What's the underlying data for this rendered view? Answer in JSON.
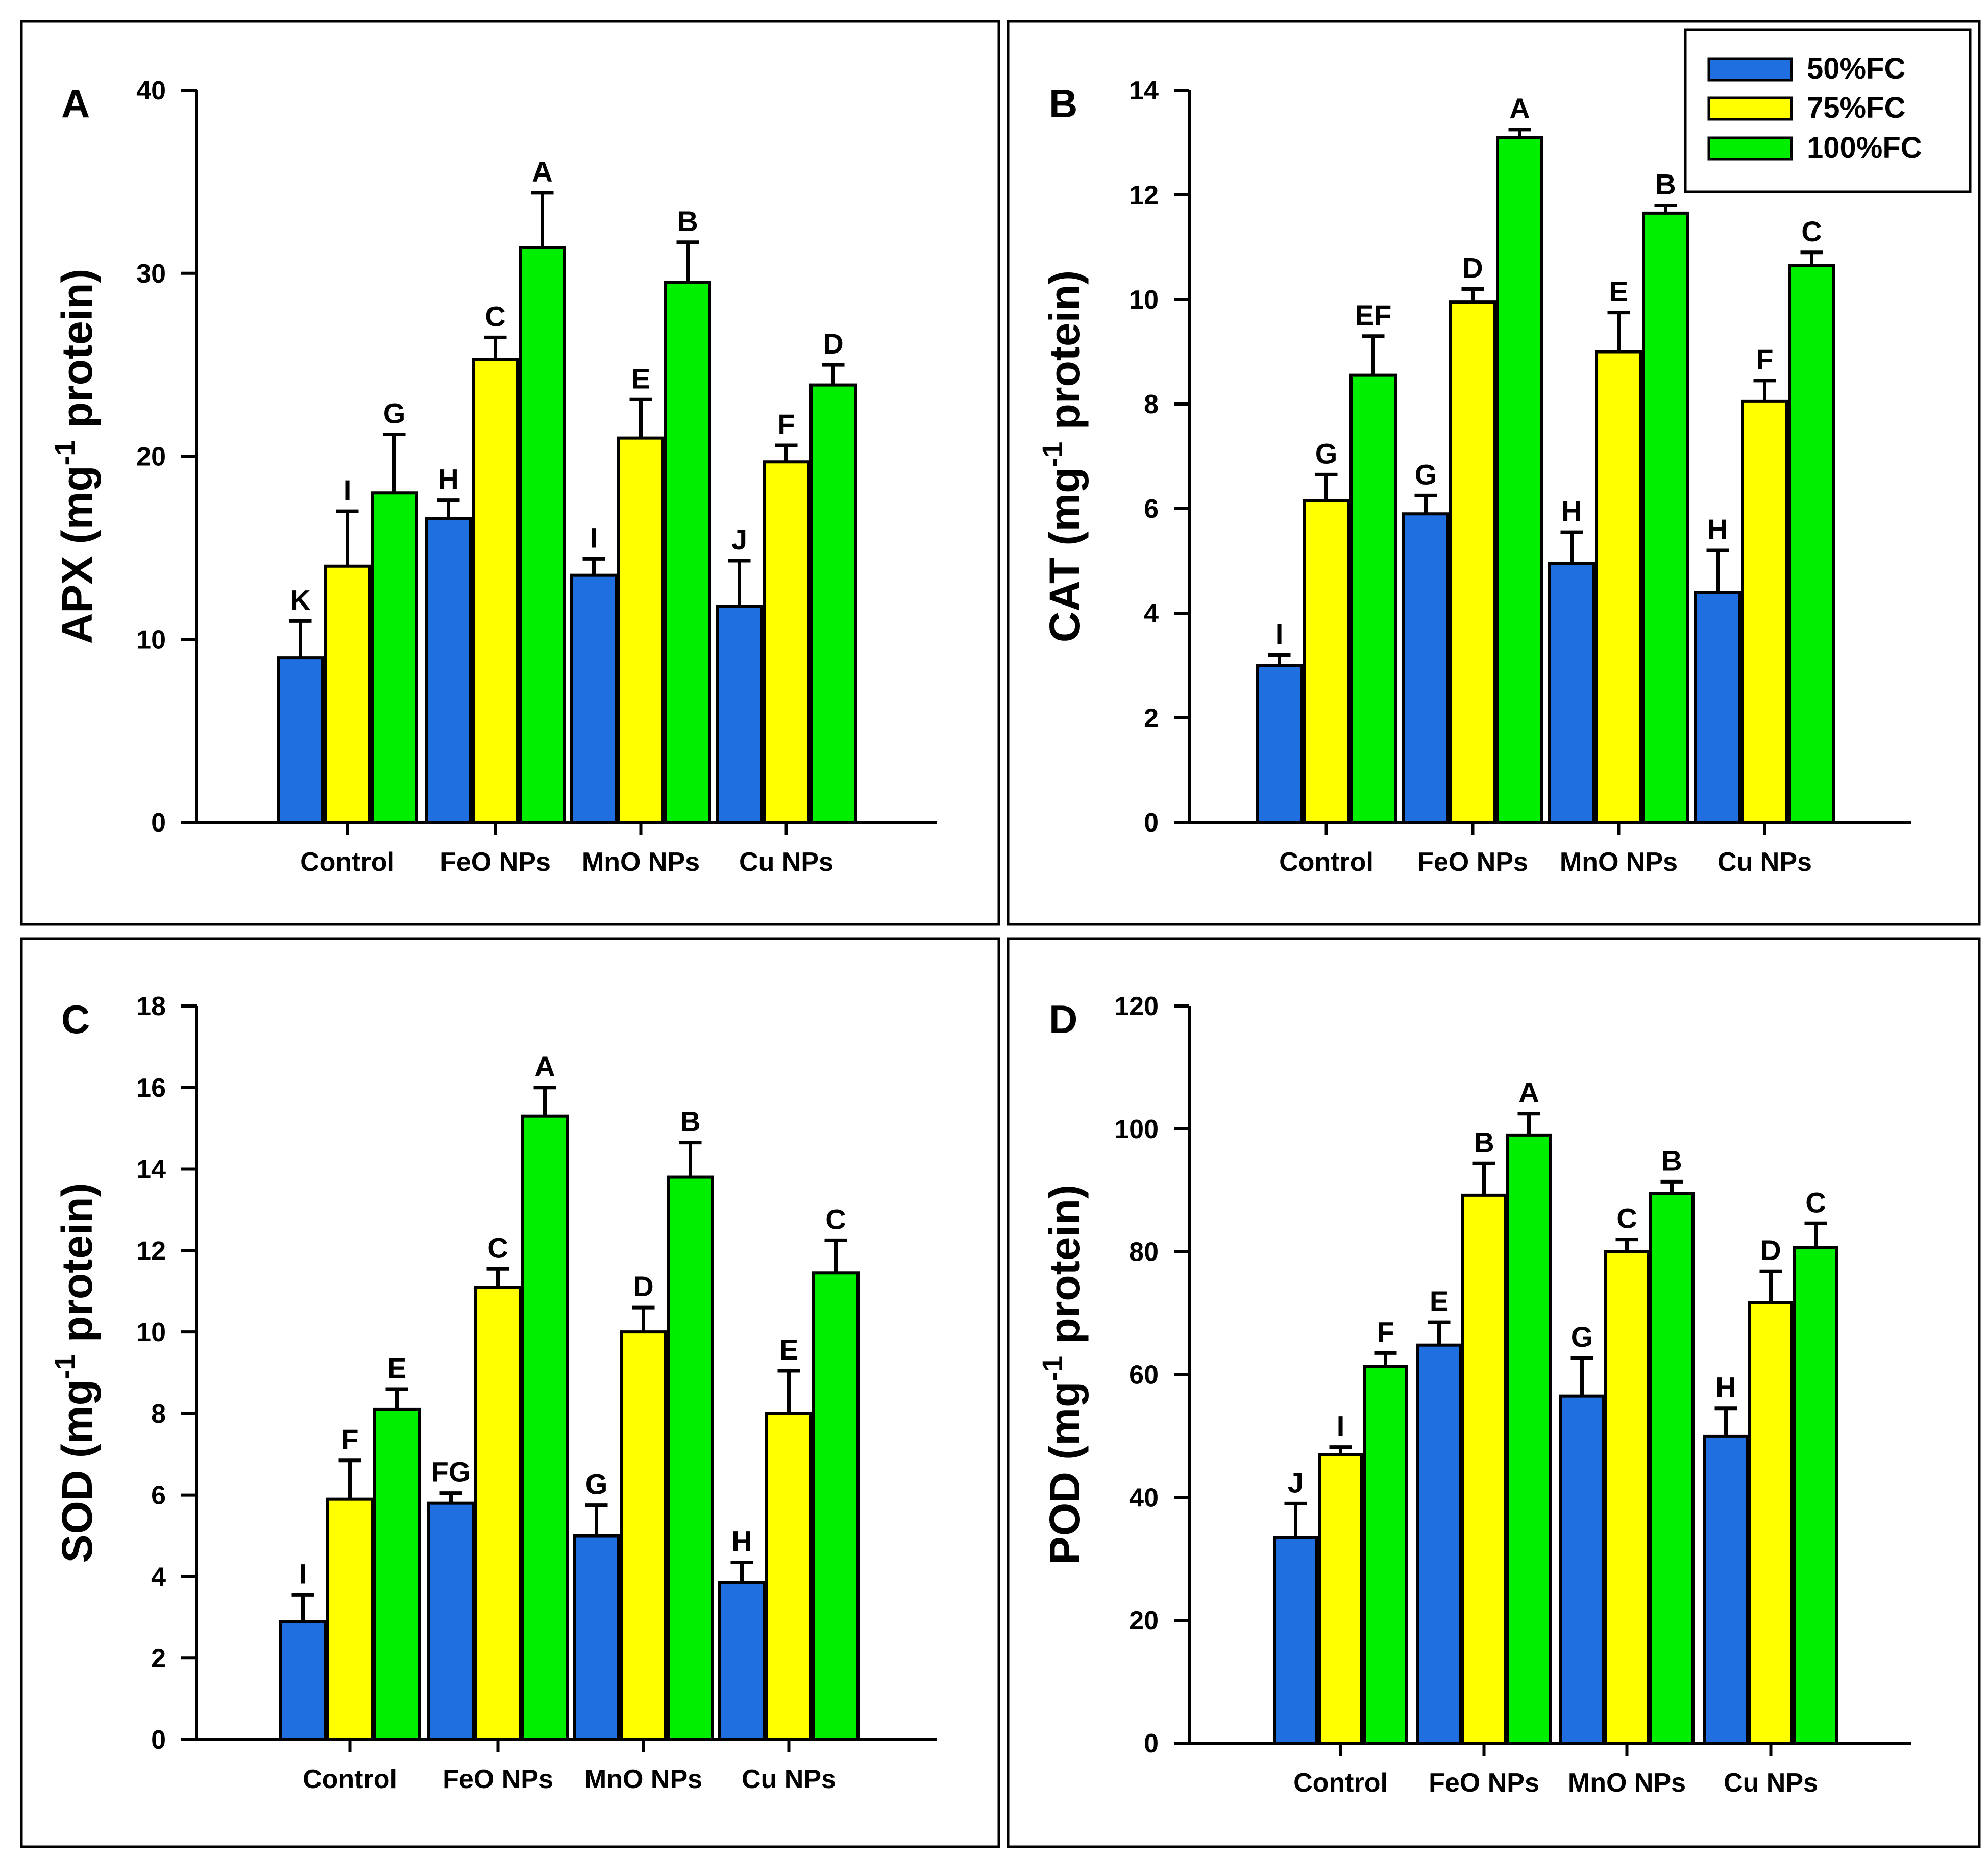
{
  "legend": {
    "entries": [
      "50%FC",
      "75%FC",
      "100%FC"
    ]
  },
  "colors": {
    "series": [
      "#1f6fe0",
      "#ffff00",
      "#00ee00"
    ]
  },
  "chart_data": [
    {
      "type": "bar",
      "panel_label": "A",
      "ylabel_main": "APX (mg",
      "ylabel_sup": "-1",
      "ylabel_end": " protein)",
      "ylim": [
        0,
        40
      ],
      "yticks": [
        0,
        10,
        20,
        30,
        40
      ],
      "categories": [
        "Control",
        "FeO NPs",
        "MnO NPs",
        "Cu NPs"
      ],
      "series": [
        {
          "name": "50%FC",
          "values": [
            9.0,
            16.6,
            13.5,
            11.8
          ],
          "errors": [
            2.0,
            1.0,
            0.9,
            2.5
          ],
          "letters": [
            "K",
            "H",
            "I",
            "J"
          ]
        },
        {
          "name": "75%FC",
          "values": [
            14.0,
            25.3,
            21.0,
            19.7
          ],
          "errors": [
            3.0,
            1.2,
            2.1,
            0.9
          ],
          "letters": [
            "I",
            "C",
            "E",
            "F"
          ]
        },
        {
          "name": "100%FC",
          "values": [
            18.0,
            31.4,
            29.5,
            23.9
          ],
          "errors": [
            3.2,
            3.0,
            2.2,
            1.1
          ],
          "letters": [
            "G",
            "A",
            "B",
            "D"
          ]
        }
      ]
    },
    {
      "type": "bar",
      "panel_label": "B",
      "ylabel_main": "CAT (mg",
      "ylabel_sup": "-1",
      "ylabel_end": " protein)",
      "ylim": [
        0,
        14
      ],
      "yticks": [
        0,
        2,
        4,
        6,
        8,
        10,
        12,
        14
      ],
      "categories": [
        "Control",
        "FeO NPs",
        "MnO NPs",
        "Cu NPs"
      ],
      "series": [
        {
          "name": "50%FC",
          "values": [
            3.0,
            5.9,
            4.95,
            4.4
          ],
          "errors": [
            0.2,
            0.35,
            0.6,
            0.8
          ],
          "letters": [
            "I",
            "G",
            "H",
            "H"
          ]
        },
        {
          "name": "75%FC",
          "values": [
            6.15,
            9.95,
            9.0,
            8.05
          ],
          "errors": [
            0.5,
            0.25,
            0.75,
            0.4
          ],
          "letters": [
            "G",
            "D",
            "E",
            "F"
          ]
        },
        {
          "name": "100%FC",
          "values": [
            8.55,
            13.1,
            11.65,
            10.65
          ],
          "errors": [
            0.75,
            0.15,
            0.15,
            0.25
          ],
          "letters": [
            "EF",
            "A",
            "B",
            "C"
          ]
        }
      ]
    },
    {
      "type": "bar",
      "panel_label": "C",
      "ylabel_main": "SOD (mg",
      "ylabel_sup": "-1",
      "ylabel_end": " protein)",
      "ylim": [
        0,
        18
      ],
      "yticks": [
        0,
        2,
        4,
        6,
        8,
        10,
        12,
        14,
        16,
        18
      ],
      "categories": [
        "Control",
        "FeO NPs",
        "MnO NPs",
        "Cu NPs"
      ],
      "series": [
        {
          "name": "50%FC",
          "values": [
            2.9,
            5.8,
            5.0,
            3.85
          ],
          "errors": [
            0.65,
            0.25,
            0.75,
            0.5
          ],
          "letters": [
            "I",
            "FG",
            "G",
            "H"
          ]
        },
        {
          "name": "75%FC",
          "values": [
            5.9,
            11.1,
            10.0,
            8.0
          ],
          "errors": [
            0.95,
            0.45,
            0.6,
            1.05
          ],
          "letters": [
            "F",
            "C",
            "D",
            "E"
          ]
        },
        {
          "name": "100%FC",
          "values": [
            8.1,
            15.3,
            13.8,
            11.45
          ],
          "errors": [
            0.5,
            0.7,
            0.85,
            0.8
          ],
          "letters": [
            "E",
            "A",
            "B",
            "C"
          ]
        }
      ]
    },
    {
      "type": "bar",
      "panel_label": "D",
      "ylabel_main": "POD (mg",
      "ylabel_sup": "-1",
      "ylabel_end": " protein)",
      "ylim": [
        0,
        120
      ],
      "yticks": [
        0,
        20,
        40,
        60,
        80,
        100,
        120
      ],
      "categories": [
        "Control",
        "FeO NPs",
        "MnO NPs",
        "Cu NPs"
      ],
      "series": [
        {
          "name": "50%FC",
          "values": [
            33.5,
            64.8,
            56.5,
            50.0
          ],
          "errors": [
            5.5,
            3.7,
            6.2,
            4.5
          ],
          "letters": [
            "J",
            "E",
            "G",
            "H"
          ]
        },
        {
          "name": "75%FC",
          "values": [
            47.0,
            89.2,
            80.0,
            71.7
          ],
          "errors": [
            1.2,
            5.2,
            2.0,
            5.1
          ],
          "letters": [
            "I",
            "B",
            "C",
            "D"
          ]
        },
        {
          "name": "100%FC",
          "values": [
            61.3,
            99.0,
            89.5,
            80.7
          ],
          "errors": [
            2.2,
            3.5,
            1.9,
            3.9
          ],
          "letters": [
            "F",
            "A",
            "B",
            "C"
          ]
        }
      ]
    }
  ]
}
